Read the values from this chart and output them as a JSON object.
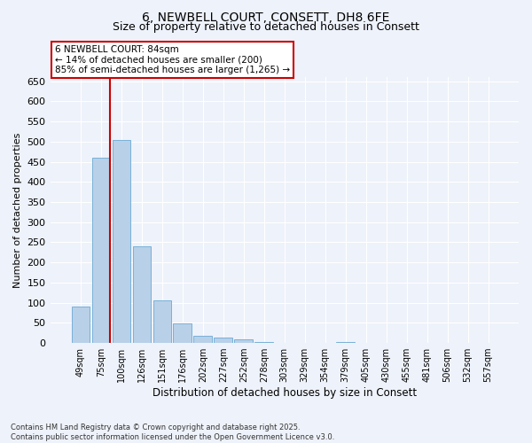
{
  "title_line1": "6, NEWBELL COURT, CONSETT, DH8 6FE",
  "title_line2": "Size of property relative to detached houses in Consett",
  "xlabel": "Distribution of detached houses by size in Consett",
  "ylabel": "Number of detached properties",
  "categories": [
    "49sqm",
    "75sqm",
    "100sqm",
    "126sqm",
    "151sqm",
    "176sqm",
    "202sqm",
    "227sqm",
    "252sqm",
    "278sqm",
    "303sqm",
    "329sqm",
    "354sqm",
    "379sqm",
    "405sqm",
    "430sqm",
    "455sqm",
    "481sqm",
    "506sqm",
    "532sqm",
    "557sqm"
  ],
  "values": [
    90,
    460,
    505,
    240,
    105,
    48,
    18,
    13,
    8,
    3,
    1,
    0,
    0,
    2,
    0,
    0,
    0,
    1,
    0,
    1,
    0
  ],
  "bar_color": "#b8d0e8",
  "bar_edge_color": "#6aaad4",
  "highlight_line_color": "#cc0000",
  "annotation_line1": "6 NEWBELL COURT: 84sqm",
  "annotation_line2": "← 14% of detached houses are smaller (200)",
  "annotation_line3": "85% of semi-detached houses are larger (1,265) →",
  "annotation_box_color": "#cc0000",
  "ylim": [
    0,
    660
  ],
  "yticks": [
    0,
    50,
    100,
    150,
    200,
    250,
    300,
    350,
    400,
    450,
    500,
    550,
    600,
    650
  ],
  "footer_line1": "Contains HM Land Registry data © Crown copyright and database right 2025.",
  "footer_line2": "Contains public sector information licensed under the Open Government Licence v3.0.",
  "bg_color": "#eef2fa",
  "plot_bg_color": "#eef2fa",
  "grid_color": "#ffffff",
  "title_fontsize": 10,
  "subtitle_fontsize": 9
}
